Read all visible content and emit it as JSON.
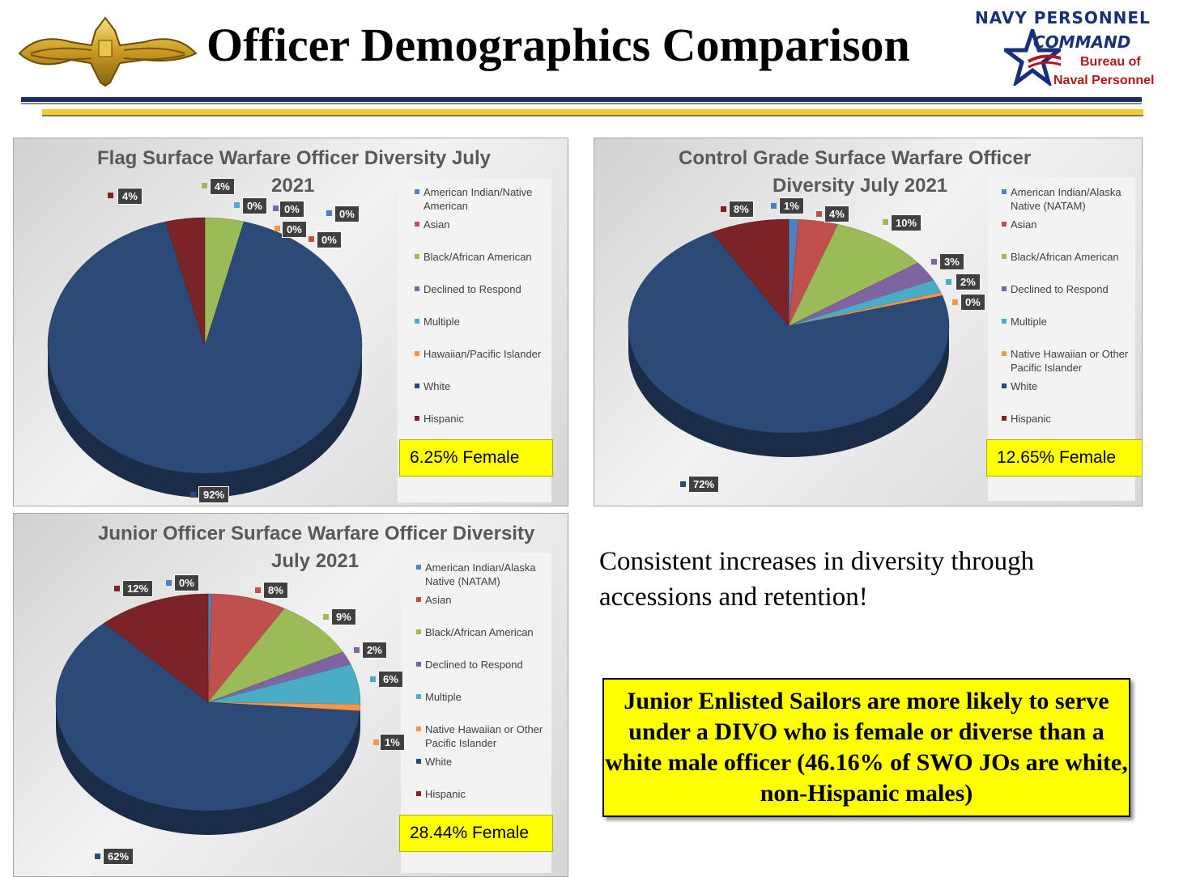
{
  "header": {
    "title": "Officer Demographics Comparison",
    "logo_line1": "NAVY PERSONNEL",
    "logo_line2": "COMMAND",
    "logo_line3": "Bureau of",
    "logo_line4": "Naval Personnel"
  },
  "colors": {
    "natam": "#4f81bd",
    "asian": "#c0504d",
    "black": "#9bbb59",
    "declined": "#8064a2",
    "multiple": "#4bacc6",
    "hawaiian": "#f79646",
    "white": "#2c4a78",
    "hispanic": "#7b2326"
  },
  "chart_data": [
    {
      "type": "pie",
      "title_line1": "Flag Surface Warfare Officer Diversity July",
      "title_line2": "2021",
      "legend": [
        "American Indian/Native American",
        "Asian",
        "Black/African American",
        "Declined to Respond",
        "Multiple",
        "Hawaiian/Pacific Islander",
        "White",
        "Hispanic"
      ],
      "values": [
        0,
        0,
        4,
        0,
        0,
        0,
        92,
        4
      ],
      "labels": [
        "0%",
        "0%",
        "4%",
        "0%",
        "0%",
        "0%",
        "92%",
        "4%"
      ],
      "female_note": "6.25% Female"
    },
    {
      "type": "pie",
      "title_line1": "Control Grade Surface Warfare Officer",
      "title_line2": "Diversity July 2021",
      "legend": [
        "American Indian/Alaska Native (NATAM)",
        "Asian",
        "Black/African American",
        "Declined to Respond",
        "Multiple",
        "Native Hawaiian or Other Pacific Islander",
        "White",
        "Hispanic"
      ],
      "values": [
        1,
        4,
        10,
        3,
        2,
        0.5,
        72,
        8
      ],
      "labels": [
        "1%",
        "4%",
        "10%",
        "3%",
        "2%",
        "0%",
        "72%",
        "8%"
      ],
      "female_note": "12.65% Female"
    },
    {
      "type": "pie",
      "title_line1": "Junior Officer Surface Warfare Officer Diversity",
      "title_line2": "July 2021",
      "legend": [
        "American Indian/Alaska Native (NATAM)",
        "Asian",
        "Black/African American",
        "Declined to Respond",
        "Multiple",
        "Native Hawaiian or Other Pacific Islander",
        "White",
        "Hispanic"
      ],
      "values": [
        0.4,
        8,
        9,
        2,
        6,
        1,
        62,
        12
      ],
      "labels": [
        "0%",
        "8%",
        "9%",
        "2%",
        "6%",
        "1%",
        "62%",
        "12%"
      ],
      "female_note": "28.44% Female"
    }
  ],
  "body": {
    "consistent_text": "Consistent increases in diversity through accessions and retention!",
    "callout_text": "Junior Enlisted Sailors are more likely to serve under a DIVO who is female or diverse than a white male officer (46.16% of SWO JOs are white, non-Hispanic males)"
  }
}
